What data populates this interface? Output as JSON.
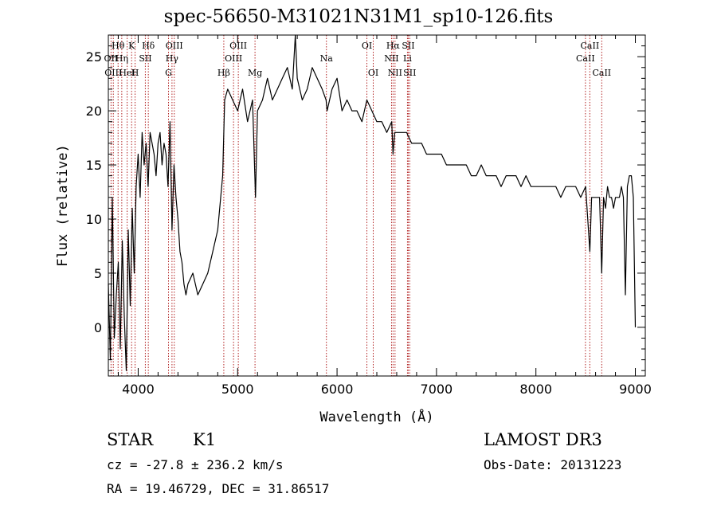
{
  "title": "spec-56650-M31021N31M1_sp10-126.fits",
  "footer": {
    "object_class": "STAR",
    "object_subclass": "K1",
    "cz": "cz = -27.8 ± 236.2 km/s",
    "ra_dec": "RA =  19.46729, DEC =  31.86517",
    "survey": "LAMOST DR3",
    "obs_date": "Obs-Date: 20131223"
  },
  "colors": {
    "line": "#000000",
    "marker": "#b22222",
    "axis": "#000000"
  },
  "chart_data": {
    "type": "line",
    "xlabel": "Wavelength (Å)",
    "ylabel": "Flux (relative)",
    "xlim": [
      3700,
      9100
    ],
    "ylim": [
      -4.5,
      27
    ],
    "x_ticks": [
      4000,
      5000,
      6000,
      7000,
      8000,
      9000
    ],
    "y_ticks": [
      0,
      5,
      10,
      15,
      20,
      25
    ],
    "x": [
      3700,
      3720,
      3740,
      3760,
      3780,
      3800,
      3820,
      3840,
      3860,
      3880,
      3900,
      3920,
      3940,
      3960,
      3980,
      4000,
      4020,
      4040,
      4060,
      4080,
      4100,
      4120,
      4140,
      4160,
      4180,
      4200,
      4220,
      4240,
      4260,
      4280,
      4300,
      4320,
      4340,
      4360,
      4380,
      4400,
      4420,
      4440,
      4460,
      4480,
      4500,
      4550,
      4600,
      4650,
      4700,
      4750,
      4800,
      4850,
      4870,
      4900,
      4950,
      5000,
      5050,
      5100,
      5150,
      5180,
      5200,
      5250,
      5300,
      5350,
      5400,
      5450,
      5500,
      5550,
      5580,
      5600,
      5650,
      5700,
      5750,
      5800,
      5850,
      5890,
      5900,
      5950,
      6000,
      6050,
      6100,
      6150,
      6200,
      6250,
      6300,
      6350,
      6400,
      6450,
      6500,
      6550,
      6563,
      6580,
      6600,
      6650,
      6700,
      6750,
      6800,
      6850,
      6900,
      6950,
      7000,
      7050,
      7100,
      7150,
      7200,
      7250,
      7300,
      7350,
      7400,
      7450,
      7500,
      7550,
      7600,
      7650,
      7700,
      7750,
      7800,
      7850,
      7900,
      7950,
      8000,
      8050,
      8100,
      8150,
      8200,
      8250,
      8300,
      8350,
      8400,
      8450,
      8500,
      8542,
      8560,
      8600,
      8640,
      8662,
      8680,
      8700,
      8720,
      8740,
      8760,
      8780,
      8800,
      8820,
      8840,
      8860,
      8880,
      8900,
      8920,
      8940,
      8960,
      8980,
      9000
    ],
    "y": [
      4,
      -3,
      12,
      -1,
      3,
      6,
      -2,
      8,
      1,
      -4,
      9,
      2,
      11,
      5,
      13,
      16,
      12,
      18,
      15,
      17,
      13,
      18,
      17,
      16,
      14,
      17,
      18,
      15,
      17,
      16,
      13,
      19,
      9,
      15,
      12,
      10,
      7,
      6,
      4,
      3,
      4,
      5,
      3,
      4,
      5,
      7,
      9,
      14,
      21,
      22,
      21,
      20,
      22,
      19,
      21,
      12,
      20,
      21,
      23,
      21,
      22,
      23,
      24,
      22,
      27,
      23,
      21,
      22,
      24,
      23,
      22,
      21,
      20,
      22,
      23,
      20,
      21,
      20,
      20,
      19,
      21,
      20,
      19,
      19,
      18,
      19,
      16,
      18,
      18,
      18,
      18,
      17,
      17,
      17,
      16,
      16,
      16,
      16,
      15,
      15,
      15,
      15,
      15,
      14,
      14,
      15,
      14,
      14,
      14,
      13,
      14,
      14,
      14,
      13,
      14,
      13,
      13,
      13,
      13,
      13,
      13,
      12,
      13,
      13,
      13,
      12,
      13,
      7,
      12,
      12,
      12,
      5,
      12,
      11,
      13,
      12,
      12,
      11,
      12,
      12,
      12,
      13,
      12,
      3,
      13,
      14,
      14,
      12,
      0
    ],
    "line_markers": [
      {
        "label": "Hθ",
        "x": 3798,
        "row": 1
      },
      {
        "label": "OII",
        "x": 3727,
        "row": 2
      },
      {
        "label": "OIII",
        "x": 3750,
        "row": 3
      },
      {
        "label": "K",
        "x": 3934,
        "row": 1
      },
      {
        "label": "Hη",
        "x": 3835,
        "row": 2
      },
      {
        "label": "HeI",
        "x": 3889,
        "row": 3
      },
      {
        "label": "SII",
        "x": 4072,
        "row": 2
      },
      {
        "label": "H",
        "x": 3969,
        "row": 3
      },
      {
        "label": "Hδ",
        "x": 4102,
        "row": 1
      },
      {
        "label": "OIII",
        "x": 4363,
        "row": 1
      },
      {
        "label": "Hγ",
        "x": 4340,
        "row": 2
      },
      {
        "label": "G",
        "x": 4305,
        "row": 3
      },
      {
        "label": "Hβ",
        "x": 4861,
        "row": 3
      },
      {
        "label": "OIII",
        "x": 5007,
        "row": 1
      },
      {
        "label": "OIII",
        "x": 4959,
        "row": 2
      },
      {
        "label": "Mg",
        "x": 5175,
        "row": 3
      },
      {
        "label": "Na",
        "x": 5893,
        "row": 2
      },
      {
        "label": "OI",
        "x": 6300,
        "row": 1
      },
      {
        "label": "OI",
        "x": 6364,
        "row": 3
      },
      {
        "label": "Hα",
        "x": 6563,
        "row": 1
      },
      {
        "label": "SII",
        "x": 6716,
        "row": 1
      },
      {
        "label": "NII",
        "x": 6548,
        "row": 2
      },
      {
        "label": "Li",
        "x": 6708,
        "row": 2
      },
      {
        "label": "NII",
        "x": 6583,
        "row": 3
      },
      {
        "label": "SII",
        "x": 6731,
        "row": 3
      },
      {
        "label": "CaII",
        "x": 8542,
        "row": 1
      },
      {
        "label": "CaII",
        "x": 8498,
        "row": 2
      },
      {
        "label": "CaII",
        "x": 8662,
        "row": 3
      }
    ]
  }
}
